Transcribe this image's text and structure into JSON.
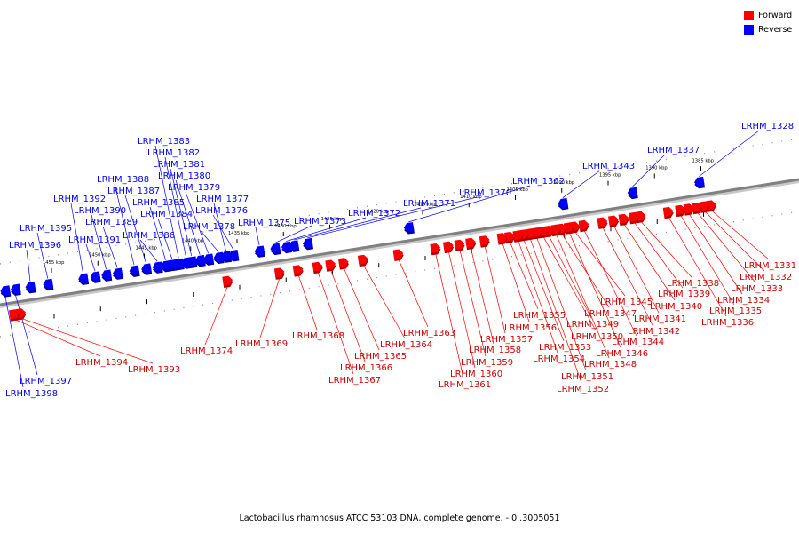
{
  "caption": "Lactobacillus rhamnosus ATCC 53103 DNA, complete genome. - 0..3005051",
  "legend": [
    {
      "label": "Forward",
      "color": "#ff0000"
    },
    {
      "label": "Reverse",
      "color": "#0000ff"
    }
  ],
  "colors": {
    "forward": "#ff0000",
    "forward_dark": "#b30000",
    "reverse": "#0000ff",
    "reverse_dark": "#0000a6",
    "backbone": "#808080"
  },
  "ticks": [
    "1385 kbp",
    "1390 kbp",
    "1395 kbp",
    "1400 kbp",
    "1405 kbp",
    "1410 kbp",
    "1415 kbp",
    "1420 kbp",
    "1425 kbp",
    "1430 kbp",
    "1435 kbp",
    "1440 kbp",
    "1445 kbp",
    "1450 kbp",
    "1455 kbp"
  ],
  "reverse_genes": [
    {
      "label": "LRHM_1328",
      "kb": 1385.2
    },
    {
      "label": "LRHM_1337",
      "kb": 1392.4
    },
    {
      "label": "LRHM_1343",
      "kb": 1399.9
    },
    {
      "label": "LRHM_1362",
      "kb": 1416.5
    },
    {
      "label": "LRHM_1370",
      "kb": 1427.4
    },
    {
      "label": "LRHM_1371",
      "kb": 1428.9
    },
    {
      "label": "LRHM_1372",
      "kb": 1429.7
    },
    {
      "label": "LRHM_1373",
      "kb": 1430.9
    },
    {
      "label": "LRHM_1375",
      "kb": 1432.6
    },
    {
      "label": "LRHM_1376",
      "kb": 1435.4
    },
    {
      "label": "LRHM_1377",
      "kb": 1436.2
    },
    {
      "label": "LRHM_1378",
      "kb": 1437.0
    },
    {
      "label": "LRHM_1379",
      "kb": 1438.1
    },
    {
      "label": "LRHM_1380",
      "kb": 1439.0
    },
    {
      "label": "LRHM_1381",
      "kb": 1439.9
    },
    {
      "label": "LRHM_1382",
      "kb": 1440.5
    },
    {
      "label": "LRHM_1383",
      "kb": 1441.3
    },
    {
      "label": "LRHM_1384",
      "kb": 1442.0
    },
    {
      "label": "LRHM_1385",
      "kb": 1442.7
    },
    {
      "label": "LRHM_1386",
      "kb": 1443.6
    },
    {
      "label": "LRHM_1387",
      "kb": 1444.8
    },
    {
      "label": "LRHM_1388",
      "kb": 1446.1
    },
    {
      "label": "LRHM_1389",
      "kb": 1447.9
    },
    {
      "label": "LRHM_1390",
      "kb": 1449.1
    },
    {
      "label": "LRHM_1391",
      "kb": 1450.3
    },
    {
      "label": "LRHM_1392",
      "kb": 1451.6
    },
    {
      "label": "LRHM_1395",
      "kb": 1455.4
    },
    {
      "label": "LRHM_1396",
      "kb": 1457.3
    },
    {
      "label": "LRHM_1397",
      "kb": 1458.9
    },
    {
      "label": "LRHM_1398",
      "kb": 1460.0
    }
  ],
  "forward_genes": [
    {
      "label": "LRHM_1331",
      "kb": 1383.9
    },
    {
      "label": "LRHM_1332",
      "kb": 1384.6
    },
    {
      "label": "LRHM_1333",
      "kb": 1385.4
    },
    {
      "label": "LRHM_1334",
      "kb": 1386.3
    },
    {
      "label": "LRHM_1335",
      "kb": 1387.2
    },
    {
      "label": "LRHM_1336",
      "kb": 1388.5
    },
    {
      "label": "LRHM_1338",
      "kb": 1391.5
    },
    {
      "label": "LRHM_1339",
      "kb": 1392.2
    },
    {
      "label": "LRHM_1340",
      "kb": 1393.3
    },
    {
      "label": "LRHM_1341",
      "kb": 1394.4
    },
    {
      "label": "LRHM_1342",
      "kb": 1395.6
    },
    {
      "label": "LRHM_1344",
      "kb": 1397.6
    },
    {
      "label": "LRHM_1345",
      "kb": 1398.6
    },
    {
      "label": "LRHM_1346",
      "kb": 1399.2
    },
    {
      "label": "LRHM_1347",
      "kb": 1400.0
    },
    {
      "label": "LRHM_1348",
      "kb": 1400.6
    },
    {
      "label": "LRHM_1349",
      "kb": 1401.4
    },
    {
      "label": "LRHM_1350",
      "kb": 1402.0
    },
    {
      "label": "LRHM_1351",
      "kb": 1402.7
    },
    {
      "label": "LRHM_1352",
      "kb": 1403.4
    },
    {
      "label": "LRHM_1353",
      "kb": 1404.1
    },
    {
      "label": "LRHM_1354",
      "kb": 1404.7
    },
    {
      "label": "LRHM_1355",
      "kb": 1405.6
    },
    {
      "label": "LRHM_1356",
      "kb": 1406.4
    },
    {
      "label": "LRHM_1357",
      "kb": 1408.3
    },
    {
      "label": "LRHM_1358",
      "kb": 1409.8
    },
    {
      "label": "LRHM_1359",
      "kb": 1411.0
    },
    {
      "label": "LRHM_1360",
      "kb": 1412.2
    },
    {
      "label": "LRHM_1361",
      "kb": 1413.6
    },
    {
      "label": "LRHM_1363",
      "kb": 1417.6
    },
    {
      "label": "LRHM_1364",
      "kb": 1421.4
    },
    {
      "label": "LRHM_1365",
      "kb": 1423.5
    },
    {
      "label": "LRHM_1366",
      "kb": 1424.9
    },
    {
      "label": "LRHM_1367",
      "kb": 1426.3
    },
    {
      "label": "LRHM_1368",
      "kb": 1428.4
    },
    {
      "label": "LRHM_1369",
      "kb": 1430.4
    },
    {
      "label": "LRHM_1374",
      "kb": 1436.0
    },
    {
      "label": "LRHM_1393",
      "kb": 1458.3
    },
    {
      "label": "LRHM_1394",
      "kb": 1459.0
    }
  ]
}
